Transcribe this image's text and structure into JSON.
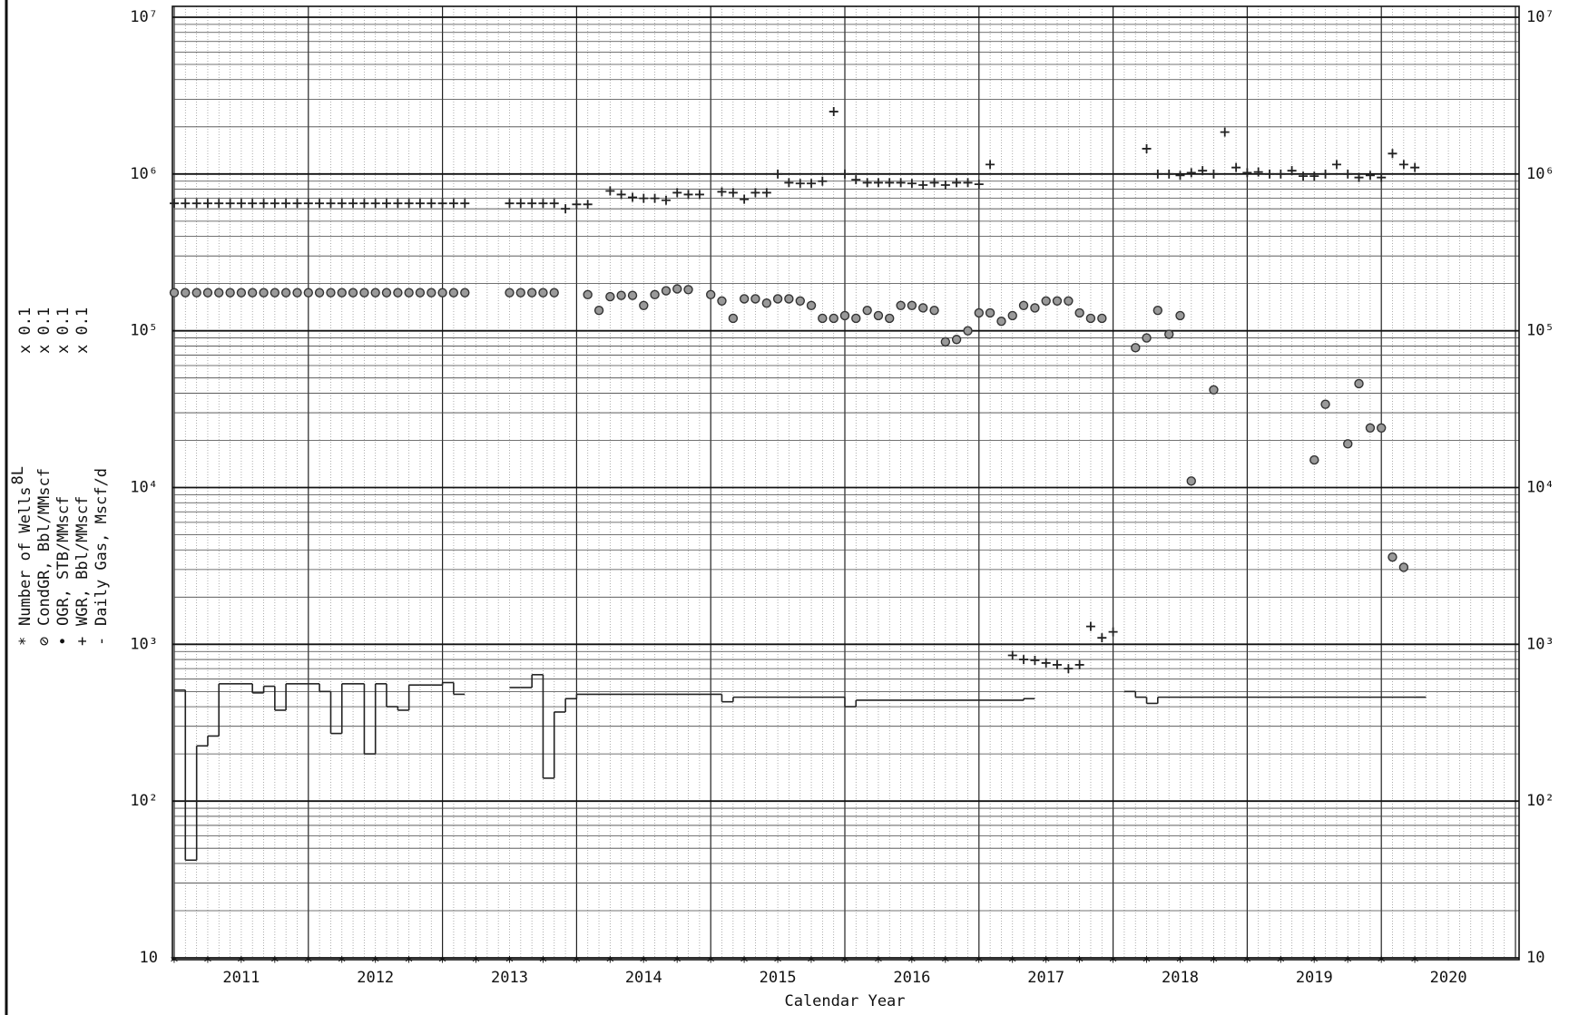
{
  "chart_data": {
    "type": "scatter",
    "x_label": "Calendar Year",
    "xlim": [
      2011,
      2021
    ],
    "xticks": [
      {
        "value": 2011.5,
        "label": "2011"
      },
      {
        "value": 2012.5,
        "label": "2012"
      },
      {
        "value": 2013.5,
        "label": "2013"
      },
      {
        "value": 2014.5,
        "label": "2014"
      },
      {
        "value": 2015.5,
        "label": "2015"
      },
      {
        "value": 2016.5,
        "label": "2016"
      },
      {
        "value": 2017.5,
        "label": "2017"
      },
      {
        "value": 2018.5,
        "label": "2018"
      },
      {
        "value": 2019.5,
        "label": "2019"
      },
      {
        "value": 2020.5,
        "label": "2020"
      }
    ],
    "ylim": [
      10,
      10000000
    ],
    "yticks": [
      10,
      {
        "value": 100,
        "label": "10²"
      },
      {
        "value": 1000,
        "label": "10³"
      },
      {
        "value": 10000,
        "label": "10⁴"
      },
      {
        "value": 100000,
        "label": "10⁵"
      },
      {
        "value": 1000000,
        "label": "10⁶"
      },
      {
        "value": 10000000,
        "label": "10⁷"
      }
    ],
    "log_y": true,
    "grid": true,
    "series": [
      {
        "name": "Number of Wells",
        "superscript": "8L",
        "multiplier": "x 0.1",
        "symbol": "*",
        "marker": "star",
        "color": "#222",
        "x": [
          2011,
          2011.25,
          2011.5,
          2011.75,
          2012,
          2012.25,
          2012.5,
          2012.75,
          2013,
          2013.25,
          2013.5,
          2013.75,
          2014,
          2014.25,
          2014.5,
          2014.75,
          2015,
          2015.25,
          2015.5,
          2015.75,
          2016,
          2016.25,
          2016.5,
          2016.75,
          2017,
          2017.25,
          2017.5,
          2017.75,
          2018,
          2018.25,
          2018.5,
          2018.75,
          2019,
          2019.25,
          2019.5,
          2019.75,
          2020,
          2020.25
        ],
        "values": [
          10,
          10,
          10,
          10,
          10,
          10,
          10,
          10,
          10,
          10,
          10,
          10,
          10,
          10,
          10,
          10,
          10,
          10,
          10,
          10,
          10,
          10,
          10,
          10,
          10,
          10,
          10,
          10,
          10,
          10,
          10,
          10,
          10,
          10,
          10,
          10,
          10,
          10
        ]
      },
      {
        "name": "CondGR, Bbl/MMscf",
        "multiplier": "x 0.1",
        "symbol": "⊘",
        "marker": "circle",
        "color": "#333",
        "x": [
          2011,
          2011.083,
          2011.167,
          2011.25,
          2011.333,
          2011.417,
          2011.5,
          2011.583,
          2011.667,
          2011.75,
          2011.833,
          2011.917,
          2012,
          2012.083,
          2012.167,
          2012.25,
          2012.333,
          2012.417,
          2012.5,
          2012.583,
          2012.667,
          2012.75,
          2012.833,
          2012.917,
          2013,
          2013.083,
          2013.167,
          2013.5,
          2013.583,
          2013.667,
          2013.75,
          2013.833,
          2014.083,
          2014.167,
          2014.25,
          2014.333,
          2014.417,
          2014.5,
          2014.583,
          2014.667,
          2014.75,
          2014.833,
          2015,
          2015.083,
          2015.167,
          2015.25,
          2015.333,
          2015.417,
          2015.5,
          2015.583,
          2015.667,
          2015.75,
          2015.833,
          2015.917,
          2016,
          2016.083,
          2016.167,
          2016.25,
          2016.333,
          2016.417,
          2016.5,
          2016.583,
          2016.667,
          2016.75,
          2016.833,
          2016.917,
          2017,
          2017.083,
          2017.167,
          2017.25,
          2017.333,
          2017.417,
          2017.5,
          2017.583,
          2017.667,
          2017.75,
          2017.833,
          2017.917,
          2018.167,
          2018.25,
          2018.333,
          2018.417,
          2018.5,
          2018.583,
          2018.75,
          2019.5,
          2019.583,
          2019.75,
          2019.833,
          2019.917,
          2020,
          2020.083,
          2020.167
        ],
        "values": [
          175000,
          175000,
          175000,
          175000,
          175000,
          175000,
          175000,
          175000,
          175000,
          175000,
          175000,
          175000,
          175000,
          175000,
          175000,
          175000,
          175000,
          175000,
          175000,
          175000,
          175000,
          175000,
          175000,
          175000,
          175000,
          175000,
          175000,
          175000,
          175000,
          175000,
          175000,
          175000,
          170000,
          135000,
          165000,
          168000,
          168000,
          145000,
          170000,
          180000,
          185000,
          183000,
          170000,
          155000,
          120000,
          160000,
          160000,
          150000,
          160000,
          160000,
          155000,
          145000,
          120000,
          120000,
          125000,
          120000,
          135000,
          125000,
          120000,
          145000,
          145000,
          140000,
          135000,
          85000,
          88000,
          100000,
          130000,
          130000,
          115000,
          125000,
          145000,
          140000,
          155000,
          155000,
          155000,
          130000,
          120000,
          120000,
          78000,
          90000,
          135000,
          95000,
          125000,
          11000,
          42000,
          15000,
          34000,
          19000,
          46000,
          24000,
          24000,
          3600,
          3100
        ]
      },
      {
        "name": "OGR, STB/MMscf",
        "multiplier": "x 0.1",
        "symbol": "•",
        "marker": "dot",
        "color": "#222",
        "x": [],
        "values": []
      },
      {
        "name": "WGR, Bbl/MMscf",
        "multiplier": "x 0.1",
        "symbol": "+",
        "marker": "plus",
        "color": "#222",
        "x": [
          2011,
          2011.083,
          2011.167,
          2011.25,
          2011.333,
          2011.417,
          2011.5,
          2011.583,
          2011.667,
          2011.75,
          2011.833,
          2011.917,
          2012,
          2012.083,
          2012.167,
          2012.25,
          2012.333,
          2012.417,
          2012.5,
          2012.583,
          2012.667,
          2012.75,
          2012.833,
          2012.917,
          2013,
          2013.083,
          2013.167,
          2013.5,
          2013.583,
          2013.667,
          2013.75,
          2013.833,
          2013.917,
          2014,
          2014.083,
          2014.25,
          2014.333,
          2014.417,
          2014.5,
          2014.583,
          2014.667,
          2014.75,
          2014.833,
          2014.917,
          2015.083,
          2015.167,
          2015.25,
          2015.333,
          2015.417,
          2015.5,
          2015.583,
          2015.667,
          2015.75,
          2015.833,
          2015.917,
          2016,
          2016.083,
          2016.167,
          2016.25,
          2016.333,
          2016.417,
          2016.5,
          2016.583,
          2016.667,
          2016.75,
          2016.833,
          2016.917,
          2017,
          2017.083,
          2017.25,
          2017.333,
          2017.417,
          2017.5,
          2017.583,
          2017.667,
          2017.75,
          2017.833,
          2017.917,
          2018,
          2018.25,
          2018.333,
          2018.417,
          2018.5,
          2018.583,
          2018.667,
          2018.75,
          2018.833,
          2018.917,
          2019,
          2019.083,
          2019.167,
          2019.25,
          2019.333,
          2019.417,
          2019.5,
          2019.583,
          2019.667,
          2019.75,
          2019.833,
          2019.917,
          2020,
          2020.083,
          2020.167,
          2020.25
        ],
        "values": [
          650000,
          650000,
          650000,
          650000,
          650000,
          650000,
          650000,
          650000,
          650000,
          650000,
          650000,
          650000,
          650000,
          650000,
          650000,
          650000,
          650000,
          650000,
          650000,
          650000,
          650000,
          650000,
          650000,
          650000,
          650000,
          650000,
          650000,
          650000,
          650000,
          650000,
          650000,
          650000,
          600000,
          640000,
          640000,
          780000,
          740000,
          710000,
          700000,
          700000,
          680000,
          760000,
          740000,
          740000,
          770000,
          760000,
          690000,
          760000,
          760000,
          1000000,
          880000,
          870000,
          870000,
          900000,
          2500000,
          1000000,
          920000,
          880000,
          880000,
          880000,
          880000,
          870000,
          850000,
          880000,
          850000,
          880000,
          880000,
          860000,
          1150000,
          850,
          800,
          790,
          760,
          740,
          700,
          740,
          1300,
          1100,
          1200,
          1450000,
          1000000,
          1000000,
          980000,
          1020000,
          1050000,
          1000000,
          1850000,
          1100000,
          1020000,
          1030000,
          1000000,
          1000000,
          1050000,
          970000,
          970000,
          1000000,
          1150000,
          1000000,
          950000,
          980000,
          950000,
          1350000,
          1150000,
          1100000
        ]
      },
      {
        "name": "Daily Gas, Mscf/d",
        "symbol": "-",
        "marker": "step",
        "color": "#222",
        "x": [
          2011,
          2011.083,
          2011.167,
          2011.25,
          2011.333,
          2011.417,
          2011.5,
          2011.583,
          2011.667,
          2011.75,
          2011.833,
          2011.917,
          2012,
          2012.083,
          2012.167,
          2012.25,
          2012.333,
          2012.417,
          2012.5,
          2012.583,
          2012.667,
          2012.75,
          2012.833,
          2012.917,
          2013,
          2013.083,
          2013.167,
          2013.5,
          2013.583,
          2013.667,
          2013.75,
          2013.833,
          2013.917,
          2014,
          2015.083,
          2015.167,
          2016,
          2016.083,
          2017.333,
          2018,
          2018.083,
          2018.167,
          2018.25,
          2018.333,
          2020.25
        ],
        "values": [
          510,
          42,
          225,
          260,
          560,
          560,
          560,
          490,
          540,
          380,
          560,
          560,
          560,
          500,
          270,
          560,
          560,
          200,
          560,
          400,
          380,
          550,
          550,
          550,
          570,
          480,
          null,
          530,
          530,
          640,
          140,
          370,
          450,
          480,
          430,
          460,
          400,
          440,
          450,
          null,
          500,
          460,
          420,
          460,
          460
        ]
      }
    ]
  }
}
